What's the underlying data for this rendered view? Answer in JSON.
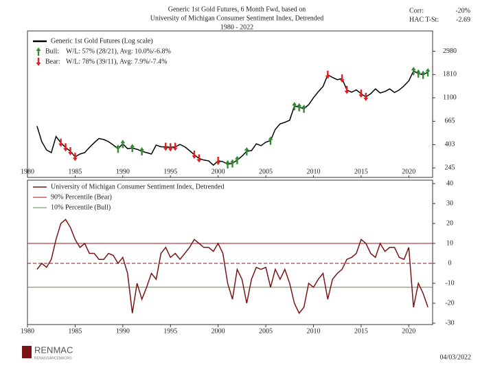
{
  "header": {
    "title": [
      "Generic 1st Gold Futures, 6 Month Fwd, based on",
      "University of Michigan Consumer Sentiment Index, Detrended",
      "1980 - 2022"
    ],
    "stats": [
      {
        "label": "Corr:",
        "value": "-20%"
      },
      {
        "label": "HAC T-St:",
        "value": "-2.69"
      }
    ]
  },
  "chart_data": [
    {
      "type": "line",
      "log_scale": true,
      "legend": "upper left",
      "y_axis_side": "right",
      "xlim": [
        1980,
        2022.5
      ],
      "xticks": [
        1980,
        1985,
        1990,
        1995,
        2000,
        2005,
        2010,
        2015,
        2020
      ],
      "ylim": [
        200,
        4600
      ],
      "yticks": [
        245,
        403,
        665,
        1100,
        1810,
        2980
      ],
      "x": [
        1981,
        1981.5,
        1982,
        1982.5,
        1983,
        1983.5,
        1984,
        1984.5,
        1985,
        1985.5,
        1986,
        1986.5,
        1987,
        1987.5,
        1988,
        1988.5,
        1989,
        1989.5,
        1990,
        1990.5,
        1991,
        1991.5,
        1992,
        1992.5,
        1993,
        1993.5,
        1994,
        1994.5,
        1995,
        1995.5,
        1996,
        1996.5,
        1997,
        1997.5,
        1998,
        1998.5,
        1999,
        1999.5,
        2000,
        2000.5,
        2001,
        2001.5,
        2002,
        2002.5,
        2003,
        2003.5,
        2004,
        2004.5,
        2005,
        2005.5,
        2006,
        2006.5,
        2007,
        2007.5,
        2008,
        2008.5,
        2009,
        2009.5,
        2010,
        2010.5,
        2011,
        2011.5,
        2012,
        2012.5,
        2013,
        2013.5,
        2014,
        2014.5,
        2015,
        2015.5,
        2016,
        2016.5,
        2017,
        2017.5,
        2018,
        2018.5,
        2019,
        2019.5,
        2020,
        2020.5,
        2021,
        2021.5,
        2022
      ],
      "series": [
        {
          "name": "Generic 1st Gold Futures (Log scale)",
          "color": "#000000",
          "values": [
            600,
            430,
            360,
            340,
            480,
            420,
            380,
            350,
            310,
            330,
            340,
            380,
            420,
            460,
            450,
            430,
            400,
            370,
            410,
            370,
            375,
            365,
            350,
            340,
            330,
            400,
            385,
            385,
            380,
            385,
            405,
            385,
            355,
            325,
            300,
            290,
            285,
            260,
            285,
            280,
            265,
            270,
            290,
            315,
            350,
            355,
            410,
            395,
            425,
            440,
            560,
            630,
            650,
            680,
            920,
            900,
            870,
            950,
            1100,
            1250,
            1400,
            1800,
            1700,
            1620,
            1660,
            1300,
            1240,
            1300,
            1200,
            1120,
            1200,
            1330,
            1220,
            1260,
            1330,
            1230,
            1300,
            1420,
            1580,
            1950,
            1850,
            1800,
            1900
          ]
        }
      ],
      "markers": [
        {
          "name": "Bull:",
          "text": "W/L: 57% (28/21), Avg: 10.0%/-6.8%",
          "color": "#2e8b2e",
          "direction": "up",
          "x": [
            1989.5,
            1990,
            1991,
            1992,
            2001,
            2001.5,
            2002,
            2003,
            2005.5,
            2008,
            2008.5,
            2009,
            2020.5,
            2021,
            2021.5,
            2022
          ],
          "values": [
            370,
            410,
            375,
            350,
            265,
            270,
            290,
            350,
            440,
            920,
            900,
            870,
            1950,
            1850,
            1800,
            1900
          ]
        },
        {
          "name": "Bear:",
          "text": "W/L: 78% (39/11), Avg: 7.9%/-7.4%",
          "color": "#e02020",
          "direction": "down",
          "x": [
            1983.5,
            1984,
            1984.5,
            1985,
            1994.5,
            1995,
            1995.5,
            1997.5,
            1998,
            2000,
            2011.5,
            2013,
            2013.5,
            2015,
            2015.5
          ],
          "values": [
            420,
            380,
            350,
            310,
            385,
            380,
            385,
            325,
            300,
            285,
            1800,
            1660,
            1300,
            1200,
            1120
          ]
        }
      ]
    },
    {
      "type": "line",
      "legend": "upper left",
      "y_axis_side": "right",
      "xlim": [
        1980,
        2022.5
      ],
      "xticks": [
        1980,
        1985,
        1990,
        1995,
        2000,
        2005,
        2010,
        2015,
        2020
      ],
      "ylim": [
        -30,
        40
      ],
      "yticks": [
        -30,
        -20,
        -10,
        0,
        10,
        20,
        30,
        40
      ],
      "x": [
        1981,
        1981.5,
        1982,
        1982.5,
        1983,
        1983.5,
        1984,
        1984.5,
        1985,
        1985.5,
        1986,
        1986.5,
        1987,
        1987.5,
        1988,
        1988.5,
        1989,
        1989.5,
        1990,
        1990.5,
        1991,
        1991.5,
        1992,
        1992.5,
        1993,
        1993.5,
        1994,
        1994.5,
        1995,
        1995.5,
        1996,
        1996.5,
        1997,
        1997.5,
        1998,
        1998.5,
        1999,
        1999.5,
        2000,
        2000.5,
        2001,
        2001.5,
        2002,
        2002.5,
        2003,
        2003.5,
        2004,
        2004.5,
        2005,
        2005.5,
        2006,
        2006.5,
        2007,
        2007.5,
        2008,
        2008.5,
        2009,
        2009.5,
        2010,
        2010.5,
        2011,
        2011.5,
        2012,
        2012.5,
        2013,
        2013.5,
        2014,
        2014.5,
        2015,
        2015.5,
        2016,
        2016.5,
        2017,
        2017.5,
        2018,
        2018.5,
        2019,
        2019.5,
        2020,
        2020.5,
        2021,
        2021.5,
        2022
      ],
      "series": [
        {
          "name": "University of Michigan Consumer Sentiment Index, Detrended",
          "color": "#7a1414",
          "values": [
            -3,
            0,
            -2,
            2,
            12,
            20,
            22,
            18,
            12,
            8,
            10,
            5,
            5,
            2,
            2,
            5,
            4,
            0,
            3,
            -5,
            -25,
            -10,
            -18,
            -12,
            -5,
            -8,
            5,
            8,
            3,
            5,
            2,
            5,
            8,
            12,
            10,
            8,
            8,
            6,
            10,
            5,
            -10,
            -18,
            -3,
            -8,
            -20,
            -8,
            -2,
            -3,
            -2,
            -12,
            -3,
            -8,
            -3,
            -10,
            -20,
            -25,
            -22,
            -10,
            -12,
            -8,
            -5,
            -18,
            -8,
            -5,
            -3,
            2,
            3,
            5,
            12,
            10,
            5,
            3,
            10,
            6,
            8,
            8,
            3,
            2,
            8,
            -22,
            -10,
            -15,
            -22
          ]
        }
      ],
      "hlines": [
        {
          "name": "90% Percentile (Bear)",
          "color": "#a0161b",
          "value": 10
        },
        {
          "name": "10% Percentile (Bull)",
          "color": "#5a8f3c",
          "value": -12
        }
      ],
      "baseline": 0,
      "baseline_dashed": true
    }
  ],
  "footer": {
    "logo": "RENMAC",
    "logo_sub": "RENAISSANCEMACRO",
    "date": "04/03/2022"
  }
}
